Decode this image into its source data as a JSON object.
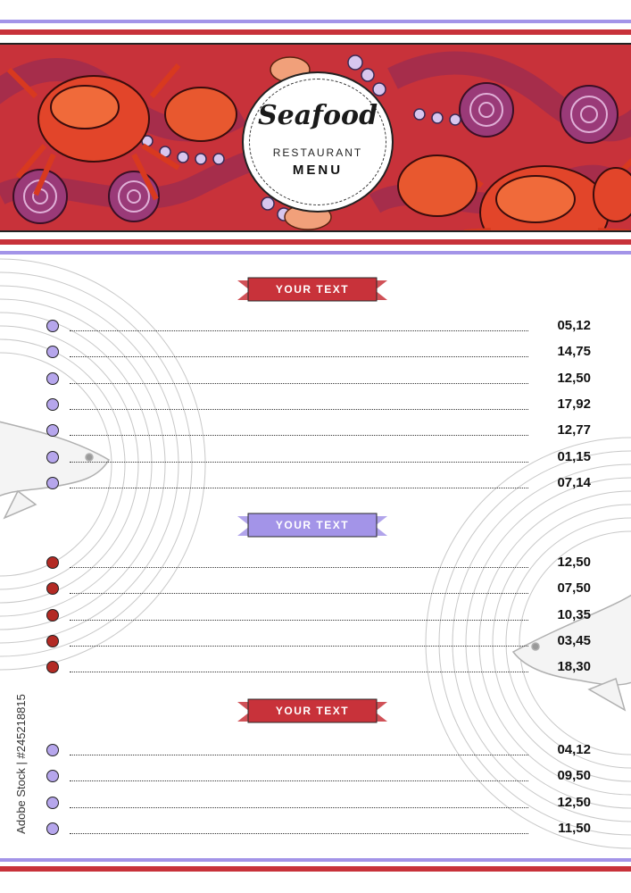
{
  "header": {
    "script_title": "Seafood",
    "subtitle": "RESTAURANT",
    "menu_label": "MENU"
  },
  "colors": {
    "red": "#c8323a",
    "lavender": "#a394e8",
    "dark_red": "#a8211f"
  },
  "sections": [
    {
      "title": "YOUR TEXT",
      "ribbon_color": "#c8323a",
      "dot_color": "#b6a6ec",
      "items": [
        {
          "price": "05,12"
        },
        {
          "price": "14,75"
        },
        {
          "price": "12,50"
        },
        {
          "price": "17,92"
        },
        {
          "price": "12,77"
        },
        {
          "price": "01,15"
        },
        {
          "price": "07,14"
        }
      ]
    },
    {
      "title": "YOUR TEXT",
      "ribbon_color": "#a394e8",
      "dot_color": "#b32a24",
      "items": [
        {
          "price": "12,50"
        },
        {
          "price": "07,50"
        },
        {
          "price": "10,35"
        },
        {
          "price": "03,45"
        },
        {
          "price": "18,30"
        }
      ]
    },
    {
      "title": "YOUR TEXT",
      "ribbon_color": "#c8323a",
      "dot_color": "#b6a6ec",
      "items": [
        {
          "price": "04,12"
        },
        {
          "price": "09,50"
        },
        {
          "price": "12,50"
        },
        {
          "price": "11,50"
        }
      ]
    }
  ],
  "watermark": "Adobe Stock | #245218815",
  "icons": [
    "fish-icon",
    "crab-icon",
    "octopus-icon",
    "plate-ring-icon"
  ]
}
